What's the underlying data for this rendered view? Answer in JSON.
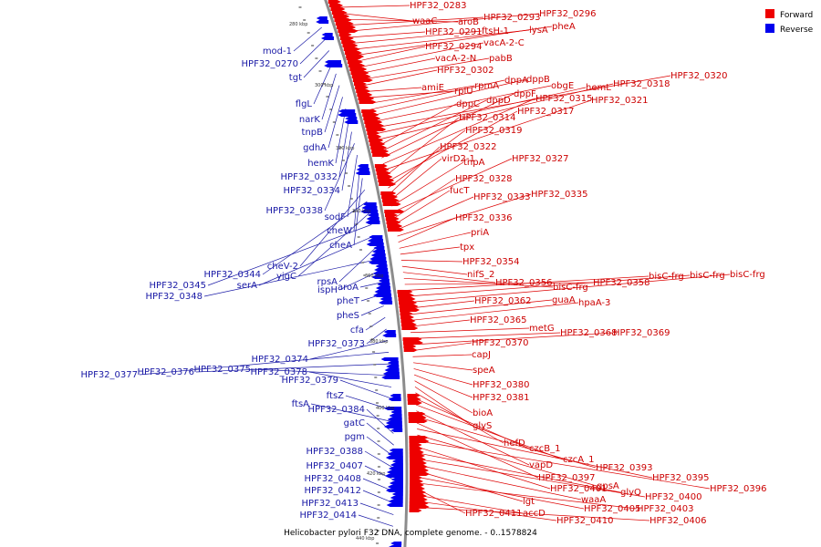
{
  "title": "Helicobacter pylori F32 DNA, complete genome. - 0..1578824",
  "legend": [
    {
      "label": "Forward",
      "color": "#ee0000"
    },
    {
      "label": "Reverse",
      "color": "#0000ee"
    }
  ],
  "ticks": [
    "280 kbp",
    "300 kbp",
    "320 kbp",
    "340 kbp",
    "360 kbp",
    "380 kbp",
    "400 kbp",
    "420 kbp",
    "440 kbp"
  ],
  "forward_genes": [
    "HPF32_0283",
    "waaC",
    "aroB",
    "HPF32_0293",
    "HPF32_0296",
    "HPF32_0291",
    "ftsH-1",
    "lysA",
    "pheA",
    "HPF32_0294",
    "vacA-2-C",
    "vacA-2-N",
    "pabB",
    "HPF32_0302",
    "amiE",
    "rplU",
    "rpmA",
    "dppA",
    "dppB",
    "obgE",
    "HPF32_0320",
    "hemL",
    "HPF32_0318",
    "dppC",
    "dppD",
    "dppF",
    "HPF32_0315",
    "HPF32_0321",
    "HPF32_0314",
    "HPF32_0317",
    "HPF32_0319",
    "HPF32_0322",
    "virD2-1",
    "tnpA",
    "HPF32_0327",
    "HPF32_0328",
    "fucT",
    "HPF32_0333",
    "HPF32_0335",
    "HPF32_0336",
    "priA",
    "tpx",
    "HPF32_0354",
    "nifS_2",
    "HPF32_0356",
    "bisC-frg",
    "HPF32_0358",
    "bisC-frg",
    "bisC-frg",
    "bisC-frg",
    "HPF32_0362",
    "guaA",
    "hpaA-3",
    "HPF32_0365",
    "metG",
    "HPF32_0368",
    "HPF32_0369",
    "HPF32_0370",
    "capJ",
    "speA",
    "HPF32_0380",
    "HPF32_0381",
    "bioA",
    "glyS",
    "hefD",
    "czcB_1",
    "czcA_1",
    "vapD",
    "HPF32_0393",
    "HPF32_0397",
    "HPF32_0395",
    "gpsA",
    "HPF32_0396",
    "HPF32_0401",
    "glyQ",
    "HPF32_0400",
    "waaA",
    "lgt",
    "HPF32_0405",
    "HPF32_0403",
    "HPF32_0411",
    "accD",
    "HPF32_0410",
    "HPF32_0406"
  ],
  "reverse_genes": [
    "mod-1",
    "HPF32_0270",
    "tgt",
    "flgL",
    "narK",
    "tnpB",
    "gdhA",
    "hemK",
    "HPF32_0332",
    "HPF32_0334",
    "HPF32_0338",
    "sodF",
    "cheW",
    "cheA",
    "cheV-2",
    "HPF32_0344",
    "yigC",
    "HPF32_0345",
    "serA",
    "rpsA",
    "HPF32_0348",
    "ispH",
    "aroA",
    "pheT",
    "pheS",
    "cfa",
    "HPF32_0373",
    "HPF32_0374",
    "HPF32_0377",
    "HPF32_0376",
    "HPF32_0375",
    "HPF32_0378",
    "HPF32_0379",
    "ftsZ",
    "ftsA",
    "HPF32_0384",
    "gatC",
    "pgm",
    "HPF32_0388",
    "HPF32_0407",
    "HPF32_0408",
    "HPF32_0412",
    "HPF32_0413",
    "HPF32_0414"
  ]
}
